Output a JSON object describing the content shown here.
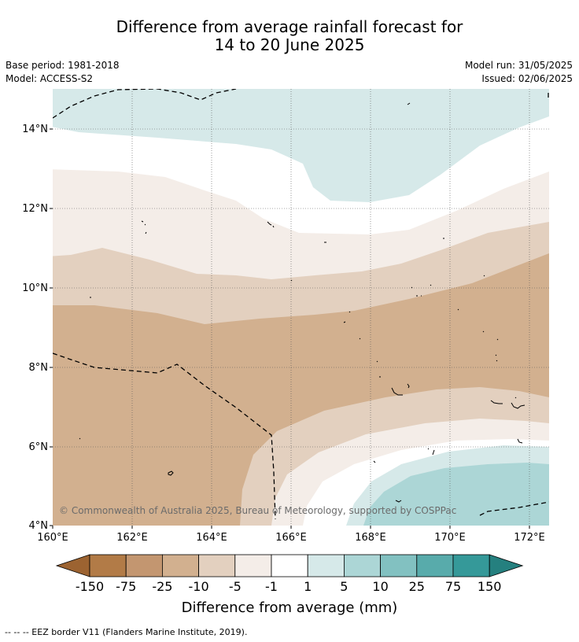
{
  "title_line1": "Difference from average rainfall forecast for",
  "title_line2": "14 to 20 June 2025",
  "base_period": "Base period: 1981-2018",
  "model": "Model: ACCESS-S2",
  "model_run": "Model run: 31/05/2025",
  "issued": "Issued: 02/06/2025",
  "copyright": "© Commonwealth of Australia 2025, Bureau of Meteorology, supported by COSPPac",
  "lat_labels": [
    "14°N",
    "12°N",
    "10°N",
    "8°N",
    "6°N",
    "4°N"
  ],
  "lon_labels": [
    "160°E",
    "162°E",
    "164°E",
    "166°E",
    "168°E",
    "170°E",
    "172°E"
  ],
  "colorbar": {
    "label": "Difference from average (mm)",
    "ticks": [
      "-150",
      "-75",
      "-25",
      "-10",
      "-5",
      "-1",
      "1",
      "5",
      "10",
      "25",
      "75",
      "150"
    ],
    "colors": [
      "#9c6331",
      "#b27b47",
      "#c39670",
      "#d2b08f",
      "#e3d0bf",
      "#f4ede8",
      "#ffffff",
      "#d6e9e9",
      "#acd6d6",
      "#82c1c1",
      "#58abab",
      "#359999",
      "#25807f"
    ]
  },
  "footnote": "--  --  -- EEZ border V11 (Flanders Marine Institute, 2019)."
}
